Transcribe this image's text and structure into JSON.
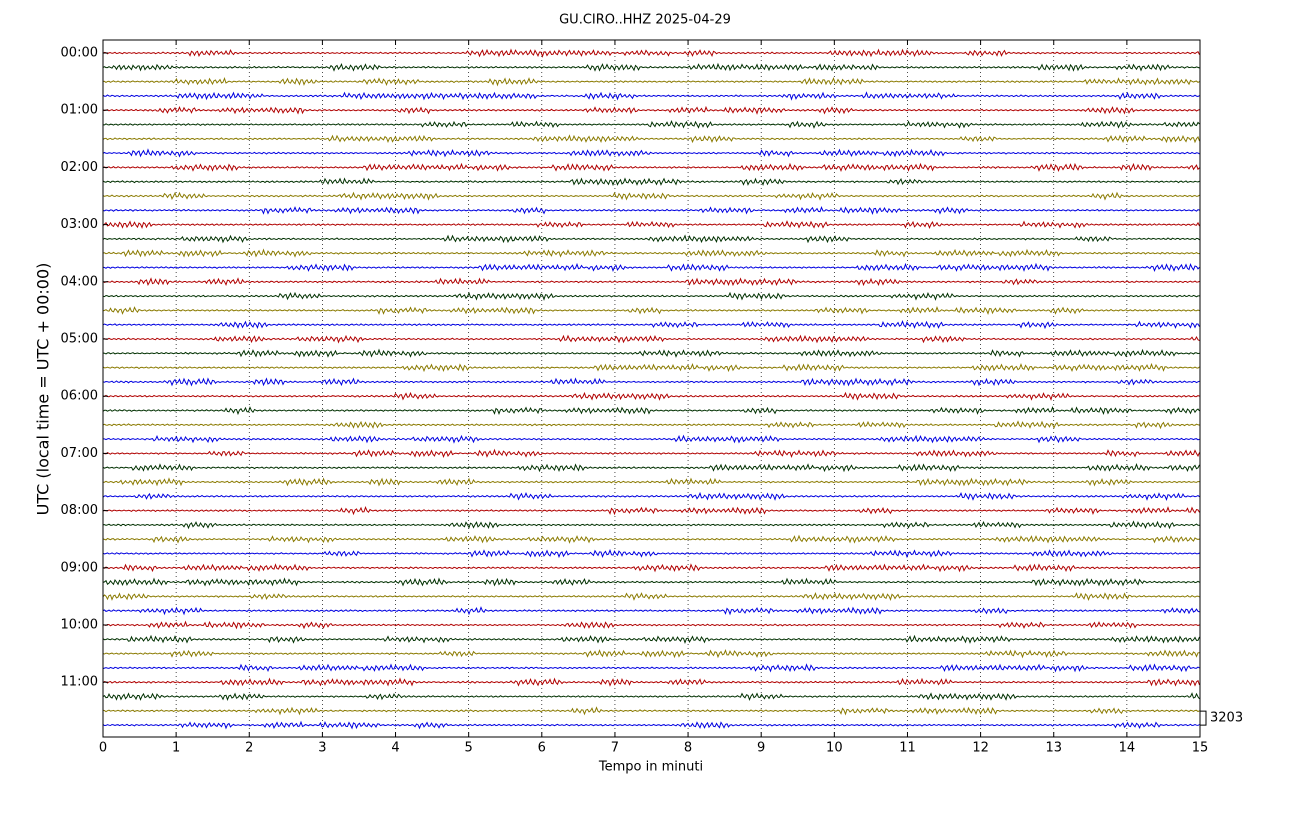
{
  "chart_data": {
    "type": "helicorder",
    "title": "GU.CIRO..HHZ 2025-04-29",
    "xlabel": "Tempo in minuti",
    "ylabel": "UTC (local time = UTC + 00:00)",
    "xlim": [
      0,
      15
    ],
    "xticks": [
      0,
      1,
      2,
      3,
      4,
      5,
      6,
      7,
      8,
      9,
      10,
      11,
      12,
      13,
      14,
      15
    ],
    "yticks": [
      "00:00",
      "01:00",
      "02:00",
      "03:00",
      "04:00",
      "05:00",
      "06:00",
      "07:00",
      "08:00",
      "09:00",
      "10:00",
      "11:00"
    ],
    "colors": [
      "#b00000",
      "#003000",
      "#8a7a00",
      "#0000e0"
    ],
    "grid": true,
    "scale": 3203
  }
}
